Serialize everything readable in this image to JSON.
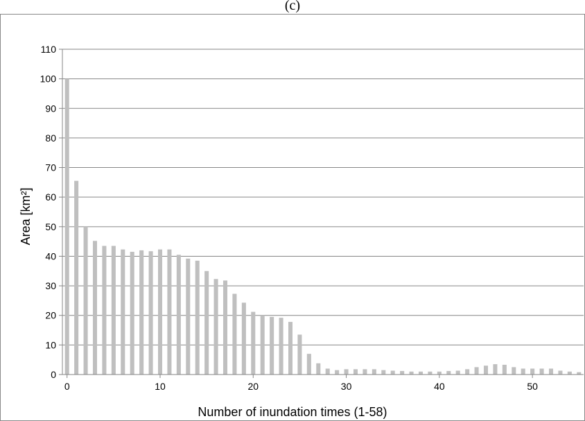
{
  "chart_data": {
    "type": "bar",
    "title": "(c)",
    "xlabel": "Number of inundation times (1-58)",
    "ylabel": "Area [km²]",
    "ylim": [
      0,
      110
    ],
    "yticks": [
      0,
      10,
      20,
      30,
      40,
      50,
      60,
      70,
      80,
      90,
      100,
      110
    ],
    "xticks": [
      0,
      10,
      20,
      30,
      40,
      50
    ],
    "xlim": [
      -0.5,
      55.5
    ],
    "grid": true,
    "bar_color": "#bfbfbf",
    "x": [
      0,
      1,
      2,
      3,
      4,
      5,
      6,
      7,
      8,
      9,
      10,
      11,
      12,
      13,
      14,
      15,
      16,
      17,
      18,
      19,
      20,
      21,
      22,
      23,
      24,
      25,
      26,
      27,
      28,
      29,
      30,
      31,
      32,
      33,
      34,
      35,
      36,
      37,
      38,
      39,
      40,
      41,
      42,
      43,
      44,
      45,
      46,
      47,
      48,
      49,
      50,
      51,
      52,
      53,
      54,
      55
    ],
    "values": [
      100,
      65.5,
      50,
      45.2,
      43.5,
      43.5,
      42.3,
      41.5,
      42,
      41.7,
      42.3,
      42.3,
      40.5,
      39.2,
      38.5,
      35,
      32.3,
      31.8,
      27.3,
      24.3,
      21.2,
      20,
      19.5,
      19.2,
      17.8,
      13.5,
      7,
      3.8,
      2,
      1.5,
      1.8,
      1.8,
      1.8,
      1.8,
      1.5,
      1.3,
      1.2,
      1,
      1,
      1,
      1,
      1.2,
      1.3,
      1.8,
      2.5,
      3,
      3.5,
      3.3,
      2.5,
      2,
      2,
      2,
      2,
      1.3,
      1,
      0.8
    ]
  }
}
